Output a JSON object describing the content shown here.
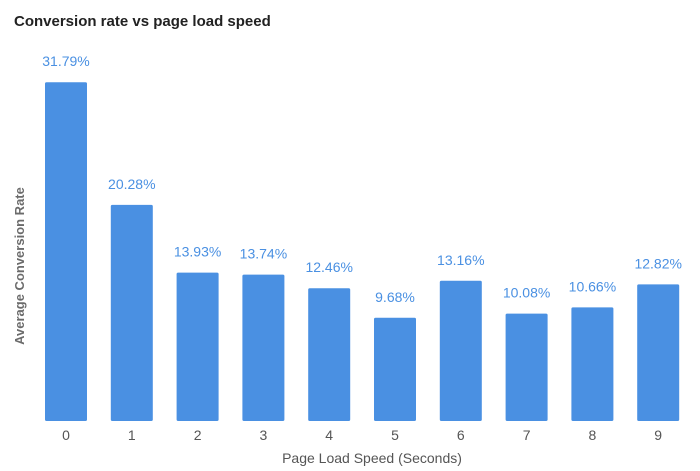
{
  "chart_data": {
    "type": "bar",
    "title": "Conversion rate vs page load speed",
    "xlabel": "Page Load Speed (Seconds)",
    "ylabel": "Average Conversion Rate",
    "categories": [
      "0",
      "1",
      "2",
      "3",
      "4",
      "5",
      "6",
      "7",
      "8",
      "9"
    ],
    "values": [
      31.79,
      20.28,
      13.93,
      13.74,
      12.46,
      9.68,
      13.16,
      10.08,
      10.66,
      12.82
    ],
    "value_labels": [
      "31.79%",
      "20.28%",
      "13.93%",
      "13.74%",
      "12.46%",
      "9.68%",
      "13.16%",
      "10.08%",
      "10.66%",
      "12.82%"
    ],
    "ylim": [
      0,
      32
    ],
    "grid": false,
    "legend": "none",
    "bar_color": "#4a90e2",
    "label_color": "#4a90e2"
  }
}
